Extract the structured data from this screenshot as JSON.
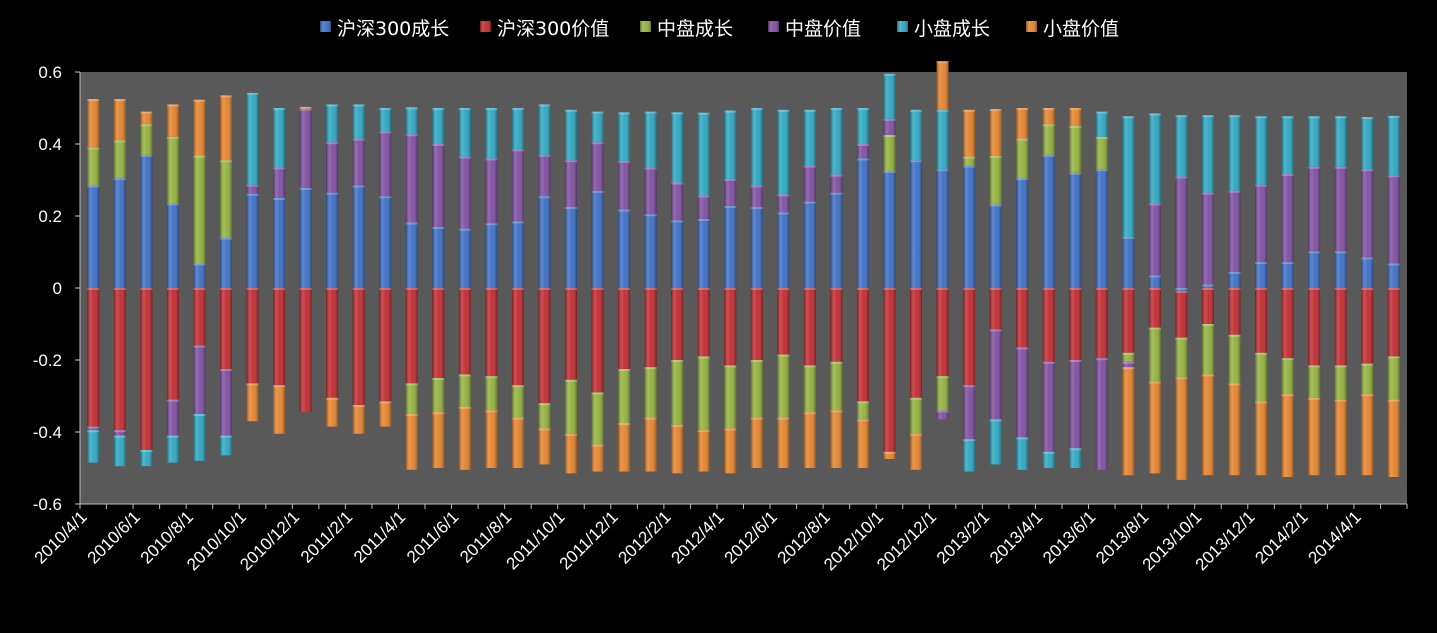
{
  "chart_data": {
    "type": "bar",
    "stacked": "positive-negative",
    "legend_position": "top",
    "grid": false,
    "background": "#595959",
    "ylim": [
      -0.6,
      0.6
    ],
    "yticks": [
      0.6,
      0.4,
      0.2,
      0,
      -0.2,
      -0.4,
      -0.6
    ],
    "ytick_labels": [
      "0.6",
      "0.4",
      "0.2",
      "0",
      "-0.2",
      "-0.4",
      "-0.6"
    ],
    "categories": [
      "2010/4/1",
      "2010/5/1",
      "2010/6/1",
      "2010/7/1",
      "2010/8/1",
      "2010/9/1",
      "2010/10/1",
      "2010/11/1",
      "2010/12/1",
      "2011/1/1",
      "2011/2/1",
      "2011/3/1",
      "2011/4/1",
      "2011/5/1",
      "2011/6/1",
      "2011/7/1",
      "2011/8/1",
      "2011/9/1",
      "2011/10/1",
      "2011/11/1",
      "2011/12/1",
      "2012/1/1",
      "2012/2/1",
      "2012/3/1",
      "2012/4/1",
      "2012/5/1",
      "2012/6/1",
      "2012/7/1",
      "2012/8/1",
      "2012/9/1",
      "2012/10/1",
      "2012/11/1",
      "2012/12/1",
      "2013/1/1",
      "2013/2/1",
      "2013/3/1",
      "2013/4/1",
      "2013/5/1",
      "2013/6/1",
      "2013/7/1",
      "2013/8/1",
      "2013/9/1",
      "2013/10/1",
      "2013/11/1",
      "2013/12/1",
      "2014/1/1",
      "2014/2/1",
      "2014/3/1",
      "2014/4/1",
      "2014/5/1"
    ],
    "xtick_labels": [
      "2010/4/1",
      "2010/6/1",
      "2010/8/1",
      "2010/10/1",
      "2010/12/1",
      "2011/2/1",
      "2011/4/1",
      "2011/6/1",
      "2011/8/1",
      "2011/10/1",
      "2011/12/1",
      "2012/2/1",
      "2012/4/1",
      "2012/6/1",
      "2012/8/1",
      "2012/10/1",
      "2012/12/1",
      "2013/2/1",
      "2013/4/1",
      "2013/6/1",
      "2013/8/1",
      "2013/10/1",
      "2013/12/1",
      "2014/2/1",
      "2014/4/1"
    ],
    "series": [
      {
        "name": "沪深300成长",
        "color": "#3A6DC5",
        "values": [
          0.285,
          0.305,
          0.37,
          0.235,
          0.068,
          0.14,
          0.262,
          0.25,
          0.278,
          0.265,
          0.285,
          0.255,
          0.182,
          0.17,
          0.165,
          0.18,
          0.185,
          0.255,
          0.225,
          0.27,
          0.218,
          0.205,
          0.188,
          0.192,
          0.228,
          0.225,
          0.21,
          0.24,
          0.265,
          0.36,
          0.325,
          0.355,
          0.33,
          0.34,
          0.232,
          0.305,
          0.37,
          0.32,
          0.33,
          0.142,
          0.035,
          -0.008,
          0.01,
          0.045,
          0.072,
          0.072,
          0.102,
          0.102,
          0.085,
          0.068
        ]
      },
      {
        "name": "沪深300价值",
        "color": "#C0282D",
        "values": [
          -0.385,
          -0.395,
          -0.45,
          -0.31,
          -0.16,
          -0.225,
          -0.265,
          -0.27,
          -0.345,
          -0.305,
          -0.325,
          -0.315,
          -0.265,
          -0.25,
          -0.24,
          -0.245,
          -0.27,
          -0.32,
          -0.255,
          -0.29,
          -0.225,
          -0.22,
          -0.2,
          -0.19,
          -0.215,
          -0.2,
          -0.185,
          -0.215,
          -0.205,
          -0.315,
          -0.455,
          -0.305,
          -0.245,
          -0.27,
          -0.115,
          -0.165,
          -0.205,
          -0.2,
          -0.195,
          -0.18,
          -0.11,
          -0.13,
          -0.1,
          -0.13,
          -0.18,
          -0.195,
          -0.215,
          -0.215,
          -0.21,
          -0.19
        ]
      },
      {
        "name": "中盘成长",
        "color": "#92B13C",
        "values": [
          0.105,
          0.105,
          0.085,
          0.185,
          0.3,
          0.215,
          0.0,
          0.0,
          0.0,
          0.0,
          0.0,
          0.0,
          -0.085,
          -0.095,
          -0.09,
          -0.095,
          -0.09,
          -0.07,
          -0.15,
          -0.145,
          -0.15,
          -0.14,
          -0.18,
          -0.205,
          -0.175,
          -0.16,
          -0.175,
          -0.13,
          -0.135,
          -0.05,
          0.1,
          -0.1,
          -0.095,
          0.025,
          0.135,
          0.11,
          0.085,
          0.13,
          0.09,
          -0.025,
          -0.15,
          -0.11,
          -0.14,
          -0.135,
          -0.135,
          -0.1,
          -0.09,
          -0.095,
          -0.085,
          -0.12
        ]
      },
      {
        "name": "中盘价值",
        "color": "#7D4C9F",
        "values": [
          -0.01,
          -0.015,
          0.0,
          -0.1,
          -0.19,
          -0.185,
          0.025,
          0.085,
          0.22,
          0.14,
          0.13,
          0.18,
          0.245,
          0.23,
          0.2,
          0.18,
          0.2,
          0.115,
          0.13,
          0.135,
          0.135,
          0.13,
          0.105,
          0.065,
          0.075,
          0.06,
          0.05,
          0.1,
          0.05,
          0.04,
          0.045,
          0.0,
          -0.025,
          -0.15,
          -0.25,
          -0.25,
          -0.25,
          -0.245,
          -0.31,
          -0.015,
          0.2,
          0.31,
          0.255,
          0.225,
          0.215,
          0.245,
          0.235,
          0.235,
          0.245,
          0.245
        ]
      },
      {
        "name": "小盘成长",
        "color": "#2BA6C1",
        "values": [
          -0.09,
          -0.085,
          -0.045,
          -0.075,
          -0.13,
          -0.055,
          0.255,
          0.165,
          0.0,
          0.105,
          0.095,
          0.065,
          0.075,
          0.1,
          0.135,
          0.14,
          0.115,
          0.14,
          0.14,
          0.085,
          0.135,
          0.155,
          0.195,
          0.23,
          0.19,
          0.215,
          0.235,
          0.155,
          0.185,
          0.1,
          0.125,
          0.14,
          0.165,
          -0.09,
          -0.125,
          -0.09,
          -0.045,
          -0.055,
          0.07,
          0.335,
          0.25,
          0.17,
          0.215,
          0.21,
          0.19,
          0.16,
          0.14,
          0.14,
          0.145,
          0.165
        ]
      },
      {
        "name": "小盘价值",
        "color": "#E4822A",
        "values": [
          0.135,
          0.115,
          0.035,
          0.09,
          0.155,
          0.18,
          -0.105,
          -0.135,
          0.005,
          -0.08,
          -0.08,
          -0.07,
          -0.155,
          -0.155,
          -0.175,
          -0.16,
          -0.14,
          -0.1,
          -0.11,
          -0.075,
          -0.135,
          -0.15,
          -0.135,
          -0.115,
          -0.125,
          -0.14,
          -0.14,
          -0.155,
          -0.16,
          -0.135,
          -0.02,
          -0.1,
          0.135,
          0.13,
          0.13,
          0.085,
          0.045,
          0.05,
          0.0,
          -0.3,
          -0.255,
          -0.285,
          -0.28,
          -0.255,
          -0.205,
          -0.23,
          -0.215,
          -0.21,
          -0.225,
          -0.215
        ]
      }
    ]
  }
}
